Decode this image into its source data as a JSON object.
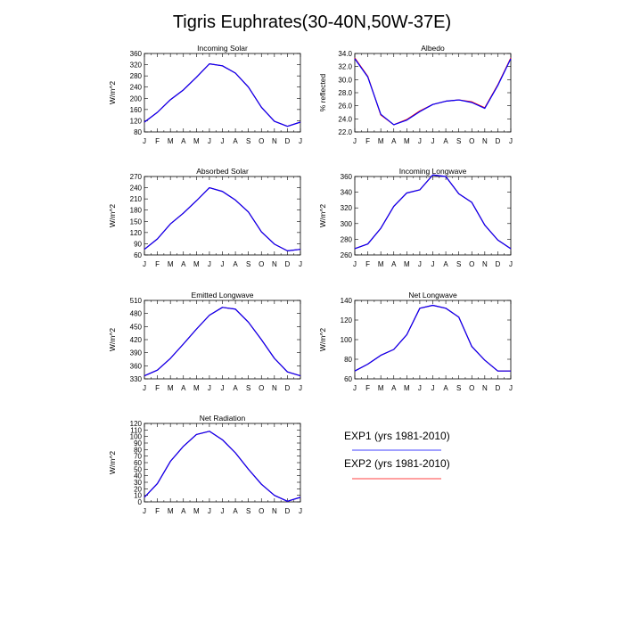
{
  "title": "Tigris Euphrates(30-40N,50W-37E)",
  "colors": {
    "exp1": "#0000ff",
    "exp2": "#ff0000",
    "axis": "#000000"
  },
  "legend": {
    "placement": "lower-right",
    "entries": [
      {
        "label": "EXP1 (yrs 1981-2010)",
        "color": "#0000ff"
      },
      {
        "label": "EXP2 (yrs 1981-2010)",
        "color": "#ff0000"
      }
    ]
  },
  "chart_data": [
    {
      "type": "line",
      "title": "Incoming Solar",
      "xlabel": "",
      "ylabel": "W/m^2",
      "categories": [
        "J",
        "F",
        "M",
        "A",
        "M",
        "J",
        "J",
        "A",
        "S",
        "O",
        "N",
        "D",
        "J"
      ],
      "ylim": [
        80,
        360
      ],
      "yticks": [
        "80",
        "120",
        "160",
        "200",
        "240",
        "280",
        "320",
        "360"
      ],
      "grid": false,
      "series": [
        {
          "name": "EXP1 (yrs 1981-2010)",
          "color": "#0000ff",
          "values": [
            115,
            150,
            195,
            230,
            275,
            323,
            316,
            290,
            240,
            168,
            118,
            100,
            115
          ]
        },
        {
          "name": "EXP2 (yrs 1981-2010)",
          "color": "#ff0000",
          "values": [
            115,
            150,
            195,
            230,
            275,
            323,
            316,
            290,
            240,
            168,
            118,
            100,
            115
          ]
        }
      ]
    },
    {
      "type": "line",
      "title": "Albedo",
      "xlabel": "",
      "ylabel": "% reflected",
      "categories": [
        "J",
        "F",
        "M",
        "A",
        "M",
        "J",
        "J",
        "A",
        "S",
        "O",
        "N",
        "D",
        "J"
      ],
      "ylim": [
        22,
        34
      ],
      "yticks": [
        "22.0",
        "24.0",
        "26.0",
        "28.0",
        "30.0",
        "32.0",
        "34.0"
      ],
      "grid": false,
      "series": [
        {
          "name": "EXP1 (yrs 1981-2010)",
          "color": "#0000ff",
          "values": [
            33.2,
            30.4,
            24.7,
            23.1,
            23.8,
            25.1,
            26.2,
            26.7,
            26.9,
            26.5,
            25.6,
            29.1,
            33.2
          ]
        },
        {
          "name": "EXP2 (yrs 1981-2010)",
          "color": "#ff0000",
          "values": [
            33.3,
            30.5,
            24.6,
            23.1,
            23.9,
            25.2,
            26.2,
            26.7,
            26.9,
            26.6,
            25.7,
            29.2,
            33.3
          ]
        }
      ]
    },
    {
      "type": "line",
      "title": "Absorbed Solar",
      "xlabel": "",
      "ylabel": "W/m^2",
      "categories": [
        "J",
        "F",
        "M",
        "A",
        "M",
        "J",
        "J",
        "A",
        "S",
        "O",
        "N",
        "D",
        "J"
      ],
      "ylim": [
        60,
        270
      ],
      "yticks": [
        "60",
        "90",
        "120",
        "150",
        "180",
        "210",
        "240",
        "270"
      ],
      "grid": false,
      "series": [
        {
          "name": "EXP1 (yrs 1981-2010)",
          "color": "#0000ff",
          "values": [
            75,
            103,
            143,
            172,
            205,
            240,
            230,
            207,
            175,
            122,
            89,
            71,
            75
          ]
        },
        {
          "name": "EXP2 (yrs 1981-2010)",
          "color": "#ff0000",
          "values": [
            75,
            103,
            143,
            172,
            205,
            240,
            230,
            207,
            175,
            122,
            89,
            71,
            75
          ]
        }
      ]
    },
    {
      "type": "line",
      "title": "Incoming Longwave",
      "xlabel": "",
      "ylabel": "W/m^2",
      "categories": [
        "J",
        "F",
        "M",
        "A",
        "M",
        "J",
        "J",
        "A",
        "S",
        "O",
        "N",
        "D",
        "J"
      ],
      "ylim": [
        260,
        360
      ],
      "yticks": [
        "260",
        "280",
        "300",
        "320",
        "340",
        "360"
      ],
      "grid": false,
      "series": [
        {
          "name": "EXP1 (yrs 1981-2010)",
          "color": "#0000ff",
          "values": [
            268,
            274,
            294,
            322,
            339,
            343,
            362,
            360,
            338,
            327,
            298,
            279,
            268
          ]
        },
        {
          "name": "EXP2 (yrs 1981-2010)",
          "color": "#ff0000",
          "values": [
            268,
            274,
            294,
            322,
            339,
            343,
            362,
            360,
            338,
            327,
            298,
            279,
            268
          ]
        }
      ]
    },
    {
      "type": "line",
      "title": "Emitted Longwave",
      "xlabel": "",
      "ylabel": "W/m^2",
      "categories": [
        "J",
        "F",
        "M",
        "A",
        "M",
        "J",
        "J",
        "A",
        "S",
        "O",
        "N",
        "D",
        "J"
      ],
      "ylim": [
        330,
        510
      ],
      "yticks": [
        "330",
        "360",
        "390",
        "420",
        "450",
        "480",
        "510"
      ],
      "grid": false,
      "series": [
        {
          "name": "EXP1 (yrs 1981-2010)",
          "color": "#0000ff",
          "values": [
            337,
            350,
            377,
            410,
            444,
            476,
            494,
            490,
            460,
            420,
            377,
            346,
            337
          ]
        },
        {
          "name": "EXP2 (yrs 1981-2010)",
          "color": "#ff0000",
          "values": [
            337,
            350,
            377,
            410,
            444,
            476,
            494,
            490,
            460,
            420,
            377,
            346,
            337
          ]
        }
      ]
    },
    {
      "type": "line",
      "title": "Net Longwave",
      "xlabel": "",
      "ylabel": "W/m^2",
      "categories": [
        "J",
        "F",
        "M",
        "A",
        "M",
        "J",
        "J",
        "A",
        "S",
        "O",
        "N",
        "D",
        "J"
      ],
      "ylim": [
        60,
        140
      ],
      "yticks": [
        "60",
        "80",
        "100",
        "120",
        "140"
      ],
      "grid": false,
      "series": [
        {
          "name": "EXP1 (yrs 1981-2010)",
          "color": "#0000ff",
          "values": [
            68,
            75,
            84,
            90,
            105,
            132,
            135,
            132,
            123,
            93,
            79,
            68,
            68
          ]
        },
        {
          "name": "EXP2 (yrs 1981-2010)",
          "color": "#ff0000",
          "values": [
            68,
            75,
            84,
            90,
            105,
            132,
            135,
            132,
            123,
            93,
            79,
            68,
            68
          ]
        }
      ]
    },
    {
      "type": "line",
      "title": "Net Radiation",
      "xlabel": "",
      "ylabel": "W/m^2",
      "categories": [
        "J",
        "F",
        "M",
        "A",
        "M",
        "J",
        "J",
        "A",
        "S",
        "O",
        "N",
        "D",
        "J"
      ],
      "ylim": [
        0,
        120
      ],
      "yticks": [
        "0",
        "10",
        "20",
        "30",
        "40",
        "50",
        "60",
        "70",
        "80",
        "90",
        "100",
        "110",
        "120"
      ],
      "grid": false,
      "series": [
        {
          "name": "EXP1 (yrs 1981-2010)",
          "color": "#0000ff",
          "values": [
            7,
            28,
            62,
            85,
            103,
            108,
            95,
            75,
            50,
            27,
            10,
            1,
            7
          ]
        },
        {
          "name": "EXP2 (yrs 1981-2010)",
          "color": "#ff0000",
          "values": [
            7,
            28,
            62,
            85,
            103,
            108,
            95,
            75,
            50,
            27,
            10,
            1,
            7
          ]
        }
      ]
    }
  ]
}
